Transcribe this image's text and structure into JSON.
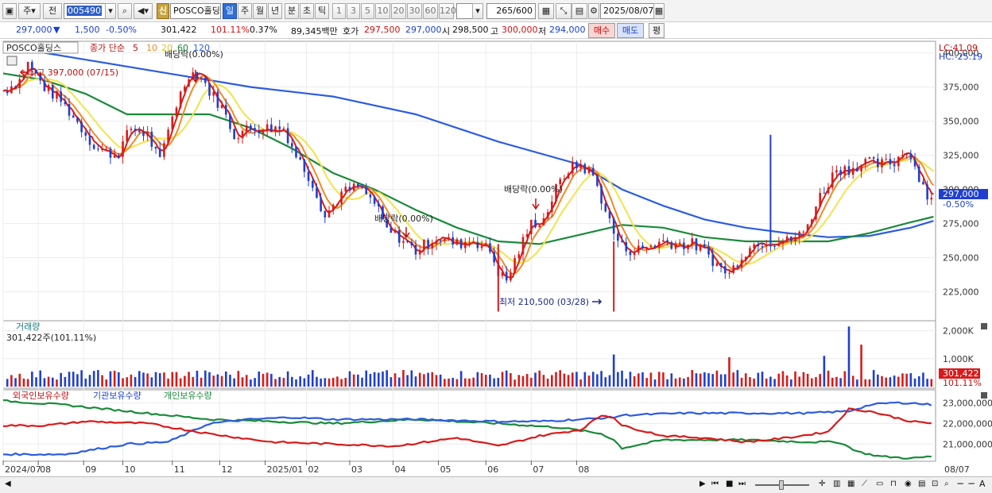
{
  "toolbar": {
    "period": "주",
    "prev": "전",
    "code": "005490",
    "sin": "신",
    "name": "POSCO홀딩스",
    "tf_day": "일",
    "tf_week": "주",
    "tf_month": "월",
    "tf_year": "년",
    "tf_min": "분",
    "tf_sec": "초",
    "tf_tick": "틱",
    "n1": "1",
    "n3": "3",
    "n5": "5",
    "n10": "10",
    "n20": "20",
    "n30": "30",
    "n60": "60",
    "n120": "120",
    "count": "265",
    "total": "/600",
    "date": "2025/08/07"
  },
  "quote": {
    "price": "297,000",
    "change": "1,500",
    "rate": "-0.50%",
    "volume": "301,422",
    "vol_ratio": "101.11%",
    "turnover_rate": "0.37%",
    "amount": "89,345백만",
    "hoga_label": "호가",
    "ask": "297,500",
    "bid": "297,000",
    "open_label": "시",
    "open": "298,500",
    "high_label": "고",
    "high": "300,000",
    "low_label": "저",
    "low": "294,000",
    "buy": "매수",
    "sell": "매도",
    "pyeong": "평"
  },
  "legend": {
    "name": "POSCO홀딩스",
    "ma_title": "종가 단순",
    "ma5": "5",
    "ma10": "10",
    "ma20": "20",
    "ma60": "60",
    "ma120": "120"
  },
  "annotations": {
    "high": "최고 397,000 (07/15)",
    "low": "최저 210,500 (03/28)",
    "div1": "배당락(0.00%)",
    "div2": "배당락(0.00%)",
    "div3": "배당락(0.00%)",
    "lc": "LC:41.09",
    "hc": "HC:-25.19",
    "price_tag": "297,000",
    "rate_tag": "-0.50%",
    "vol_title": "거래량",
    "vol_info": "301,422주(101.11%)",
    "vol_tag": "301,422",
    "vol_rate_tag": "101.11%",
    "holder_foreign": "외국인보유수량",
    "holder_inst": "기관보유수량",
    "holder_indiv": "개인보유수량"
  },
  "colors": {
    "up": "#d81b1b",
    "down": "#1f3fd0",
    "ma5": "#d81b1b",
    "ma10": "#f08a24",
    "ma20": "#f2e44a",
    "ma60": "#1a8a3a",
    "ma120": "#2c5ce0"
  },
  "chart_data": {
    "type": "candlestick",
    "price_axis": [
      "400,000",
      "375,000",
      "350,000",
      "325,000",
      "300,000",
      "275,000",
      "250,000",
      "225,000"
    ],
    "price_axis_values": [
      400000,
      375000,
      350000,
      325000,
      300000,
      275000,
      250000,
      225000
    ],
    "price_range": [
      205000,
      405000
    ],
    "volume_axis": [
      "2,000K",
      "1,000K"
    ],
    "volume_axis_values": [
      2000,
      1000
    ],
    "volume_range": [
      0,
      2300
    ],
    "holder_axis": [
      "23,000,000",
      "22,000,000",
      "21,000,000"
    ],
    "holder_axis_values": [
      23000000,
      22000000,
      21000000
    ],
    "holder_range": [
      20200000,
      23600000
    ],
    "x_labels": [
      "2024/07",
      "08",
      "09",
      "10",
      "11",
      "12",
      "2025/01",
      "02",
      "03",
      "04",
      "05",
      "06",
      "07",
      "08",
      "08/07"
    ],
    "x_label_index": [
      0,
      17,
      39,
      58,
      82,
      105,
      127,
      147,
      168,
      189,
      211,
      234,
      256,
      278,
      296
    ],
    "num_bars": 265,
    "keypoints": [
      [
        0,
        372000
      ],
      [
        8,
        380000
      ],
      [
        12,
        392000
      ],
      [
        20,
        375000
      ],
      [
        28,
        365000
      ],
      [
        38,
        345000
      ],
      [
        45,
        330000
      ],
      [
        55,
        325000
      ],
      [
        62,
        345000
      ],
      [
        70,
        340000
      ],
      [
        76,
        320000
      ],
      [
        82,
        355000
      ],
      [
        90,
        385000
      ],
      [
        95,
        385000
      ],
      [
        100,
        372000
      ],
      [
        106,
        360000
      ],
      [
        112,
        340000
      ],
      [
        120,
        345000
      ],
      [
        128,
        345000
      ],
      [
        136,
        345000
      ],
      [
        142,
        325000
      ],
      [
        150,
        305000
      ],
      [
        156,
        280000
      ],
      [
        164,
        297000
      ],
      [
        172,
        302000
      ],
      [
        180,
        290000
      ],
      [
        186,
        270000
      ],
      [
        192,
        265000
      ],
      [
        200,
        255000
      ],
      [
        210,
        265000
      ],
      [
        220,
        260000
      ],
      [
        228,
        263000
      ],
      [
        236,
        255000
      ],
      [
        240,
        240000
      ],
      [
        244,
        233000
      ],
      [
        250,
        255000
      ],
      [
        256,
        275000
      ],
      [
        262,
        278000
      ],
      [
        268,
        300000
      ],
      [
        274,
        315000
      ],
      [
        280,
        318000
      ],
      [
        286,
        310000
      ],
      [
        292,
        285000
      ],
      [
        296,
        268000
      ],
      [
        300,
        258000
      ],
      [
        306,
        255000
      ],
      [
        312,
        258000
      ],
      [
        320,
        262000
      ],
      [
        328,
        260000
      ],
      [
        334,
        260000
      ],
      [
        340,
        255000
      ],
      [
        346,
        245000
      ],
      [
        352,
        238000
      ],
      [
        358,
        252000
      ],
      [
        366,
        262000
      ],
      [
        374,
        262000
      ],
      [
        380,
        262000
      ],
      [
        388,
        268000
      ],
      [
        396,
        295000
      ],
      [
        404,
        315000
      ],
      [
        410,
        315000
      ],
      [
        418,
        320000
      ],
      [
        424,
        318000
      ],
      [
        432,
        320000
      ],
      [
        438,
        330000
      ],
      [
        444,
        310000
      ],
      [
        448,
        295000
      ],
      [
        451,
        297000
      ]
    ],
    "ma60_points": [
      [
        0,
        385000
      ],
      [
        20,
        380000
      ],
      [
        40,
        370000
      ],
      [
        60,
        355000
      ],
      [
        80,
        355000
      ],
      [
        100,
        355000
      ],
      [
        120,
        345000
      ],
      [
        140,
        330000
      ],
      [
        160,
        312000
      ],
      [
        180,
        300000
      ],
      [
        200,
        285000
      ],
      [
        220,
        272000
      ],
      [
        240,
        262000
      ],
      [
        260,
        260000
      ],
      [
        280,
        267000
      ],
      [
        300,
        274000
      ],
      [
        320,
        272000
      ],
      [
        340,
        265000
      ],
      [
        360,
        262000
      ],
      [
        380,
        262000
      ],
      [
        400,
        262000
      ],
      [
        420,
        268000
      ],
      [
        440,
        276000
      ],
      [
        451,
        280000
      ]
    ],
    "ma120_points": [
      [
        0,
        405000
      ],
      [
        40,
        395000
      ],
      [
        80,
        385000
      ],
      [
        120,
        375000
      ],
      [
        160,
        368000
      ],
      [
        200,
        355000
      ],
      [
        240,
        335000
      ],
      [
        280,
        318000
      ],
      [
        300,
        300000
      ],
      [
        320,
        288000
      ],
      [
        340,
        278000
      ],
      [
        360,
        272000
      ],
      [
        380,
        268000
      ],
      [
        400,
        265000
      ],
      [
        420,
        266000
      ],
      [
        440,
        272000
      ],
      [
        451,
        277000
      ]
    ],
    "spikes": [
      [
        240,
        260000,
        210500
      ],
      [
        296,
        262000,
        210500
      ],
      [
        372,
        340000,
        260000
      ]
    ],
    "volume_spikes": [
      [
        296,
        1150
      ],
      [
        410,
        2150
      ],
      [
        416,
        1500
      ],
      [
        352,
        1050
      ],
      [
        398,
        1100
      ]
    ],
    "holder_foreign": [
      [
        0,
        21900000
      ],
      [
        20,
        21900000
      ],
      [
        40,
        22100000
      ],
      [
        70,
        22000000
      ],
      [
        100,
        21500000
      ],
      [
        130,
        21100000
      ],
      [
        160,
        21000000
      ],
      [
        190,
        20900000
      ],
      [
        220,
        21300000
      ],
      [
        240,
        20900000
      ],
      [
        260,
        21400000
      ],
      [
        280,
        21700000
      ],
      [
        290,
        22400000
      ],
      [
        296,
        22300000
      ],
      [
        300,
        21900000
      ],
      [
        320,
        21400000
      ],
      [
        340,
        21300000
      ],
      [
        360,
        21100000
      ],
      [
        380,
        21300000
      ],
      [
        400,
        21600000
      ],
      [
        410,
        22700000
      ],
      [
        420,
        22600000
      ],
      [
        440,
        22100000
      ],
      [
        451,
        22000000
      ]
    ],
    "holder_inst": [
      [
        0,
        20500000
      ],
      [
        30,
        20500000
      ],
      [
        60,
        21000000
      ],
      [
        80,
        21100000
      ],
      [
        100,
        22000000
      ],
      [
        120,
        22200000
      ],
      [
        140,
        22300000
      ],
      [
        160,
        22200000
      ],
      [
        200,
        22200000
      ],
      [
        240,
        22100000
      ],
      [
        260,
        22100000
      ],
      [
        280,
        22200000
      ],
      [
        296,
        22300000
      ],
      [
        300,
        22400000
      ],
      [
        330,
        22500000
      ],
      [
        360,
        22500000
      ],
      [
        390,
        22500000
      ],
      [
        410,
        22600000
      ],
      [
        420,
        22900000
      ],
      [
        430,
        23000000
      ],
      [
        440,
        23000000
      ],
      [
        451,
        22900000
      ]
    ],
    "holder_indiv": [
      [
        0,
        23100000
      ],
      [
        30,
        22900000
      ],
      [
        60,
        22600000
      ],
      [
        80,
        22400000
      ],
      [
        100,
        22200000
      ],
      [
        130,
        22100000
      ],
      [
        160,
        22000000
      ],
      [
        200,
        22200000
      ],
      [
        240,
        22000000
      ],
      [
        270,
        21800000
      ],
      [
        290,
        21500000
      ],
      [
        296,
        21200000
      ],
      [
        300,
        20800000
      ],
      [
        320,
        21200000
      ],
      [
        360,
        21200000
      ],
      [
        390,
        21100000
      ],
      [
        405,
        21100000
      ],
      [
        415,
        20600000
      ],
      [
        425,
        20400000
      ],
      [
        440,
        20300000
      ],
      [
        451,
        20400000
      ]
    ]
  }
}
